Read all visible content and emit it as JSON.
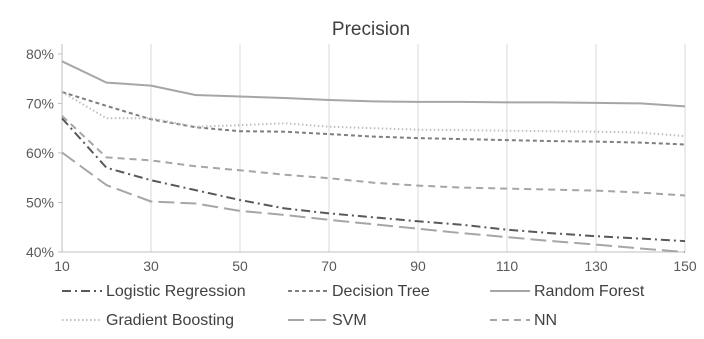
{
  "chart_data": {
    "type": "line",
    "title": "Precision",
    "xlabel": "",
    "ylabel": "",
    "x": [
      10,
      20,
      30,
      40,
      50,
      60,
      70,
      80,
      90,
      100,
      110,
      120,
      130,
      140,
      150
    ],
    "xticks": [
      "10",
      "30",
      "50",
      "70",
      "90",
      "110",
      "130",
      "150"
    ],
    "yticks": [
      "40%",
      "50%",
      "60%",
      "70%",
      "80%"
    ],
    "ylim": [
      40,
      82
    ],
    "grid": "vertical",
    "legend_position": "bottom",
    "series": [
      {
        "name": "Logistic Regression",
        "dash": "dash-dot",
        "color": "#595959",
        "values": [
          67,
          57,
          54.5,
          52.5,
          50.5,
          48.8,
          47.8,
          47,
          46.2,
          45.5,
          44.5,
          43.8,
          43.2,
          42.7,
          42.2
        ]
      },
      {
        "name": "Decision Tree",
        "dash": "short-dash",
        "color": "#7f7f7f",
        "values": [
          72.3,
          69.5,
          66.8,
          65.2,
          64.4,
          64.3,
          63.8,
          63.3,
          63,
          62.8,
          62.6,
          62.4,
          62.3,
          62.1,
          61.7
        ]
      },
      {
        "name": "Random Forest",
        "dash": "solid",
        "color": "#a6a6a6",
        "values": [
          78.5,
          74.2,
          73.6,
          71.7,
          71.4,
          71.1,
          70.7,
          70.4,
          70.3,
          70.3,
          70.2,
          70.2,
          70.1,
          70,
          69.4
        ]
      },
      {
        "name": "Gradient Boosting",
        "dash": "dotted",
        "color": "#bfbfbf",
        "values": [
          72.3,
          67,
          67,
          65.3,
          65.6,
          66,
          65.3,
          65,
          64.7,
          64.6,
          64.5,
          64.4,
          64.3,
          64.1,
          63.4
        ]
      },
      {
        "name": "SVM",
        "dash": "long-dash",
        "color": "#a6a6a6",
        "values": [
          60.1,
          53.5,
          50.2,
          49.8,
          48.3,
          47.5,
          46.5,
          45.6,
          44.7,
          43.8,
          43,
          42.2,
          41.5,
          40.7,
          40
        ]
      },
      {
        "name": "NN",
        "dash": "dash",
        "color": "#a6a6a6",
        "values": [
          67.5,
          59.1,
          58.5,
          57.3,
          56.5,
          55.6,
          54.9,
          54,
          53.4,
          53,
          52.8,
          52.6,
          52.4,
          52,
          51.4
        ]
      }
    ]
  }
}
